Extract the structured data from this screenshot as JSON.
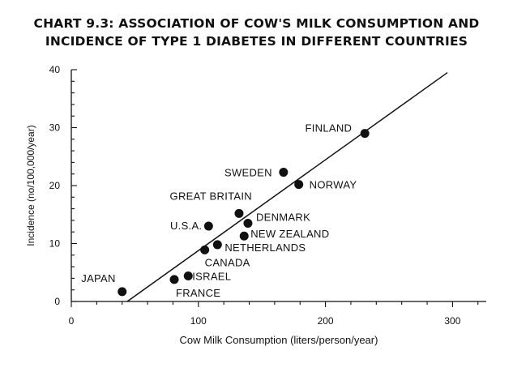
{
  "title_lines": [
    "CHART 9.3: ASSOCIATION OF COW'S MILK CONSUMPTION AND",
    "INCIDENCE OF TYPE 1 DIABETES IN DIFFERENT COUNTRIES"
  ],
  "chart_data": {
    "type": "scatter",
    "title": "CHART 9.3: ASSOCIATION OF COW'S MILK CONSUMPTION AND INCIDENCE OF TYPE 1 DIABETES IN DIFFERENT COUNTRIES",
    "xlabel": "Cow Milk Consumption (liters/person/year)",
    "ylabel": "Incidence (no/100,000/year)",
    "xlim": [
      0,
      325
    ],
    "ylim": [
      0,
      40
    ],
    "xticks": [
      "0",
      "100",
      "200",
      "300"
    ],
    "xtick_values": [
      0,
      100,
      200,
      300
    ],
    "yticks": [
      "0",
      "10",
      "20",
      "30",
      "40"
    ],
    "ytick_values": [
      0,
      10,
      20,
      30,
      40
    ],
    "grid": false,
    "legend": "none",
    "points": [
      {
        "label": "JAPAN",
        "x": 40,
        "y": 1.7
      },
      {
        "label": "FRANCE",
        "x": 81,
        "y": 3.8
      },
      {
        "label": "ISRAEL",
        "x": 92,
        "y": 4.4
      },
      {
        "label": "CANADA",
        "x": 105,
        "y": 8.9
      },
      {
        "label": "U.S.A.",
        "x": 108,
        "y": 13.0
      },
      {
        "label": "NETHERLANDS",
        "x": 115,
        "y": 9.8
      },
      {
        "label": "GREAT BRITAIN",
        "x": 132,
        "y": 15.2
      },
      {
        "label": "NEW ZEALAND",
        "x": 136,
        "y": 11.3
      },
      {
        "label": "DENMARK",
        "x": 139,
        "y": 13.5
      },
      {
        "label": "SWEDEN",
        "x": 167,
        "y": 22.3
      },
      {
        "label": "NORWAY",
        "x": 179,
        "y": 20.2
      },
      {
        "label": "FINLAND",
        "x": 231,
        "y": 29.0
      }
    ],
    "trendline": {
      "x": [
        44,
        296
      ],
      "y": [
        0,
        39.5
      ]
    }
  }
}
